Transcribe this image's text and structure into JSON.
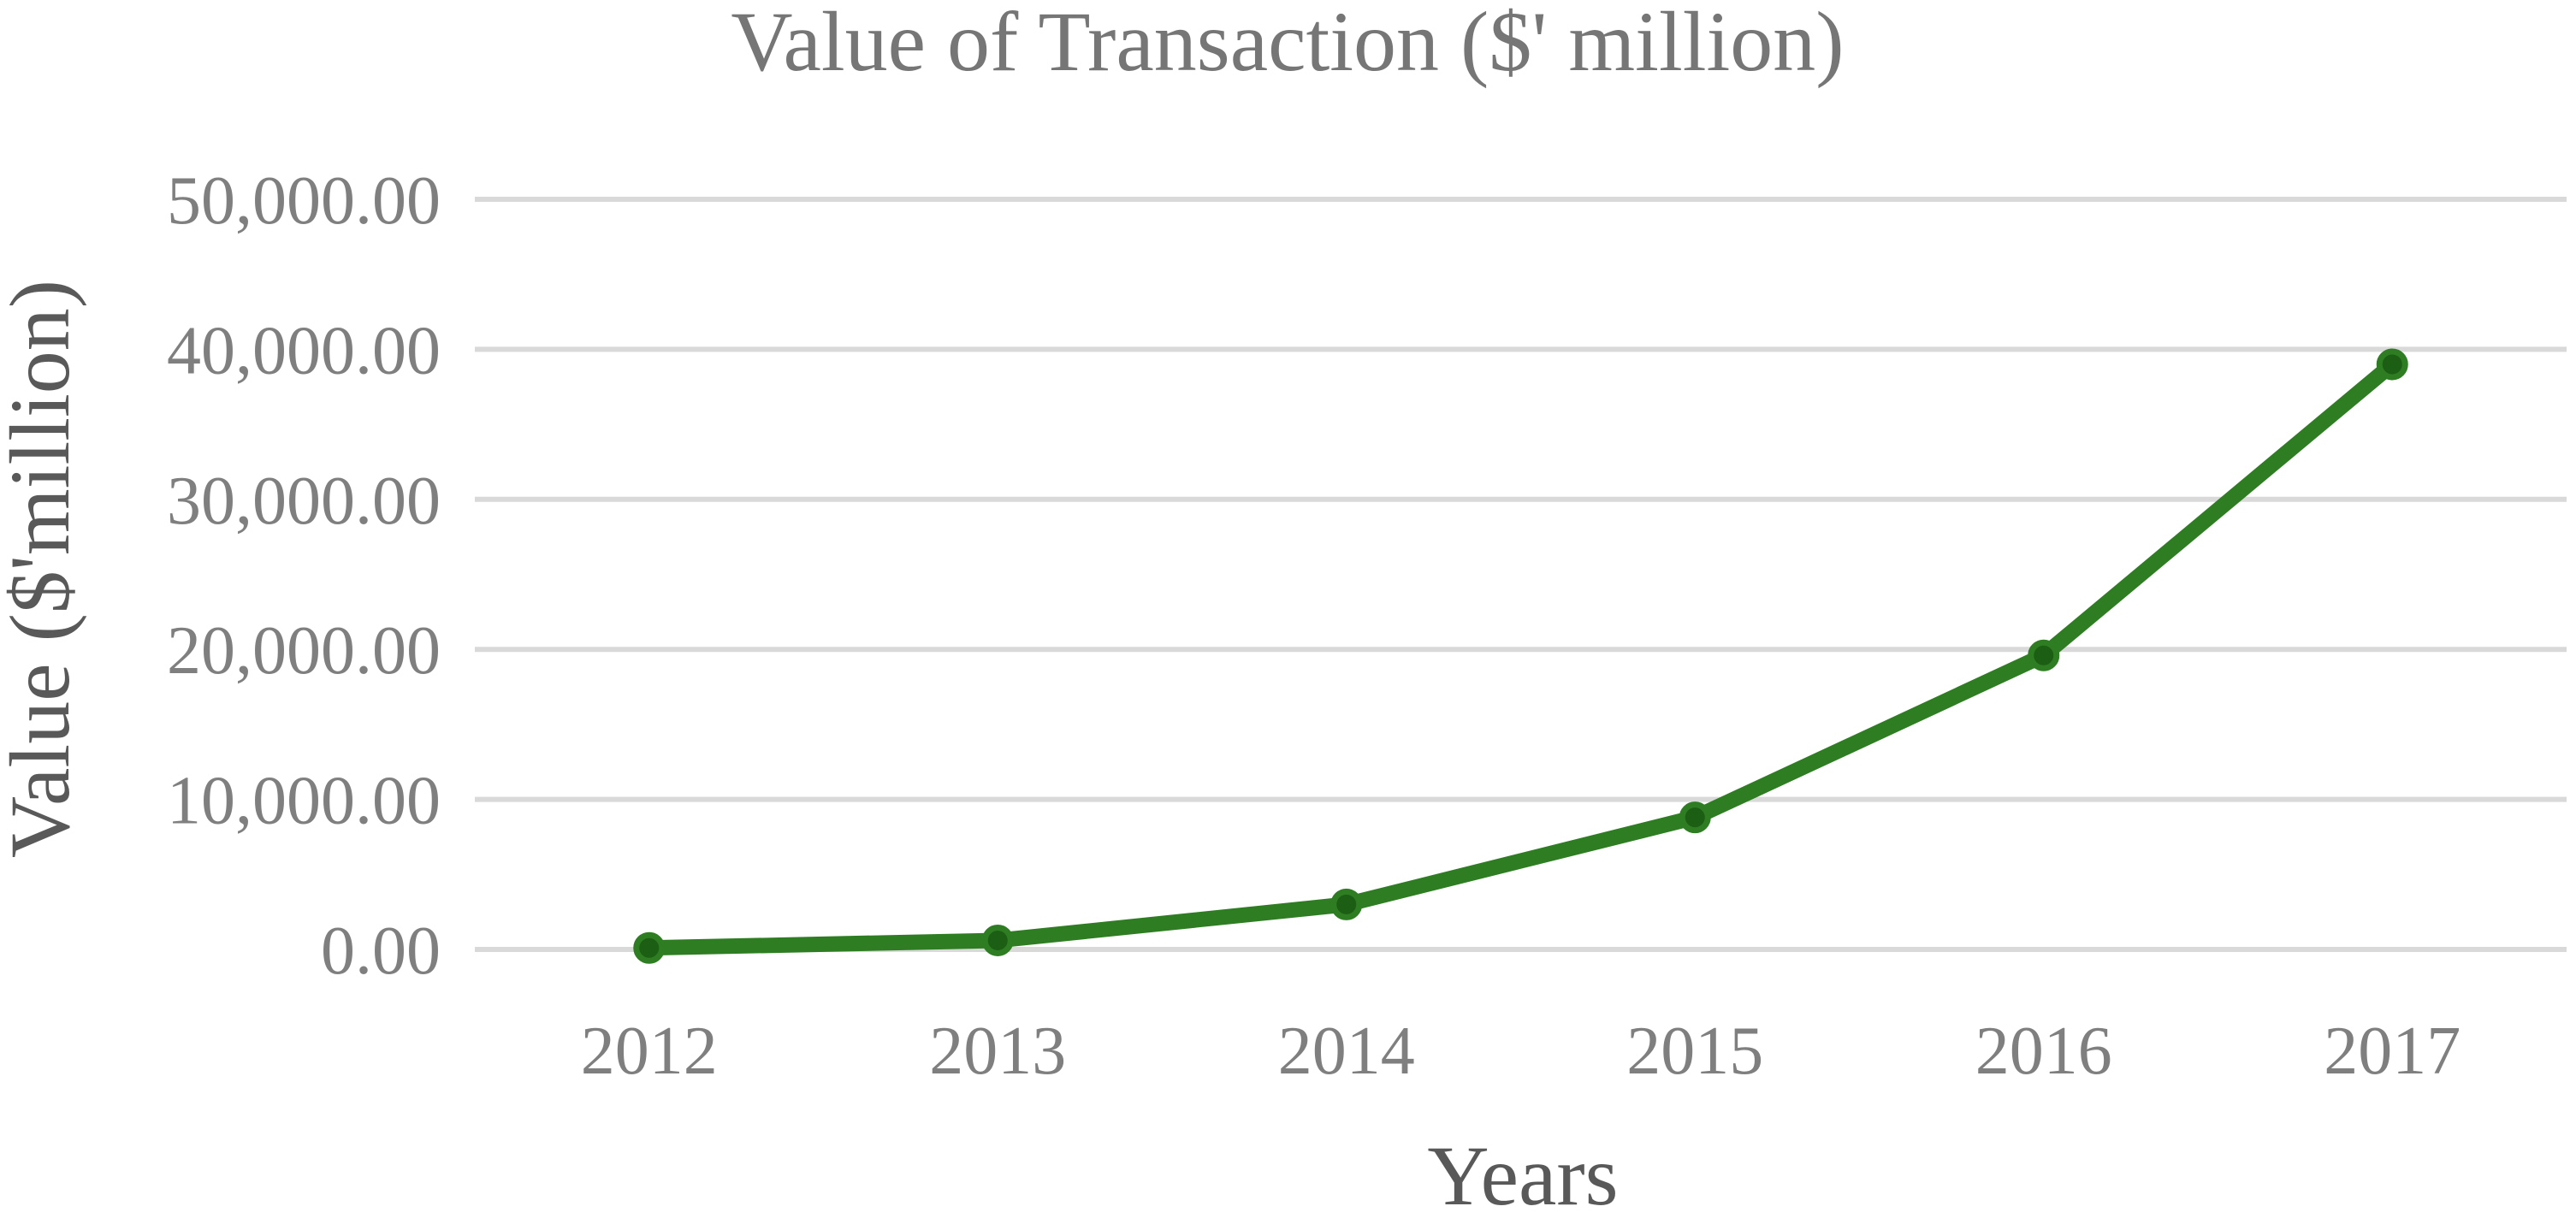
{
  "chart_data": {
    "type": "line",
    "title": "Value of Transaction ($' million)",
    "xlabel": "Years",
    "ylabel": "Value ($'million)",
    "categories": [
      "2012",
      "2013",
      "2014",
      "2015",
      "2016",
      "2017"
    ],
    "series": [
      {
        "values": [
          100,
          600,
          3000,
          8800,
          19600,
          39000
        ],
        "color": "#2e7d23",
        "marker_color": "#1c5e14"
      }
    ],
    "ylim": [
      0,
      50000
    ],
    "yticks": [
      0,
      10000,
      20000,
      30000,
      40000,
      50000
    ],
    "ytick_labels": [
      "0.00",
      "10,000.00",
      "20,000.00",
      "30,000.00",
      "40,000.00",
      "50,000.00"
    ],
    "grid": true,
    "legend": "none"
  }
}
